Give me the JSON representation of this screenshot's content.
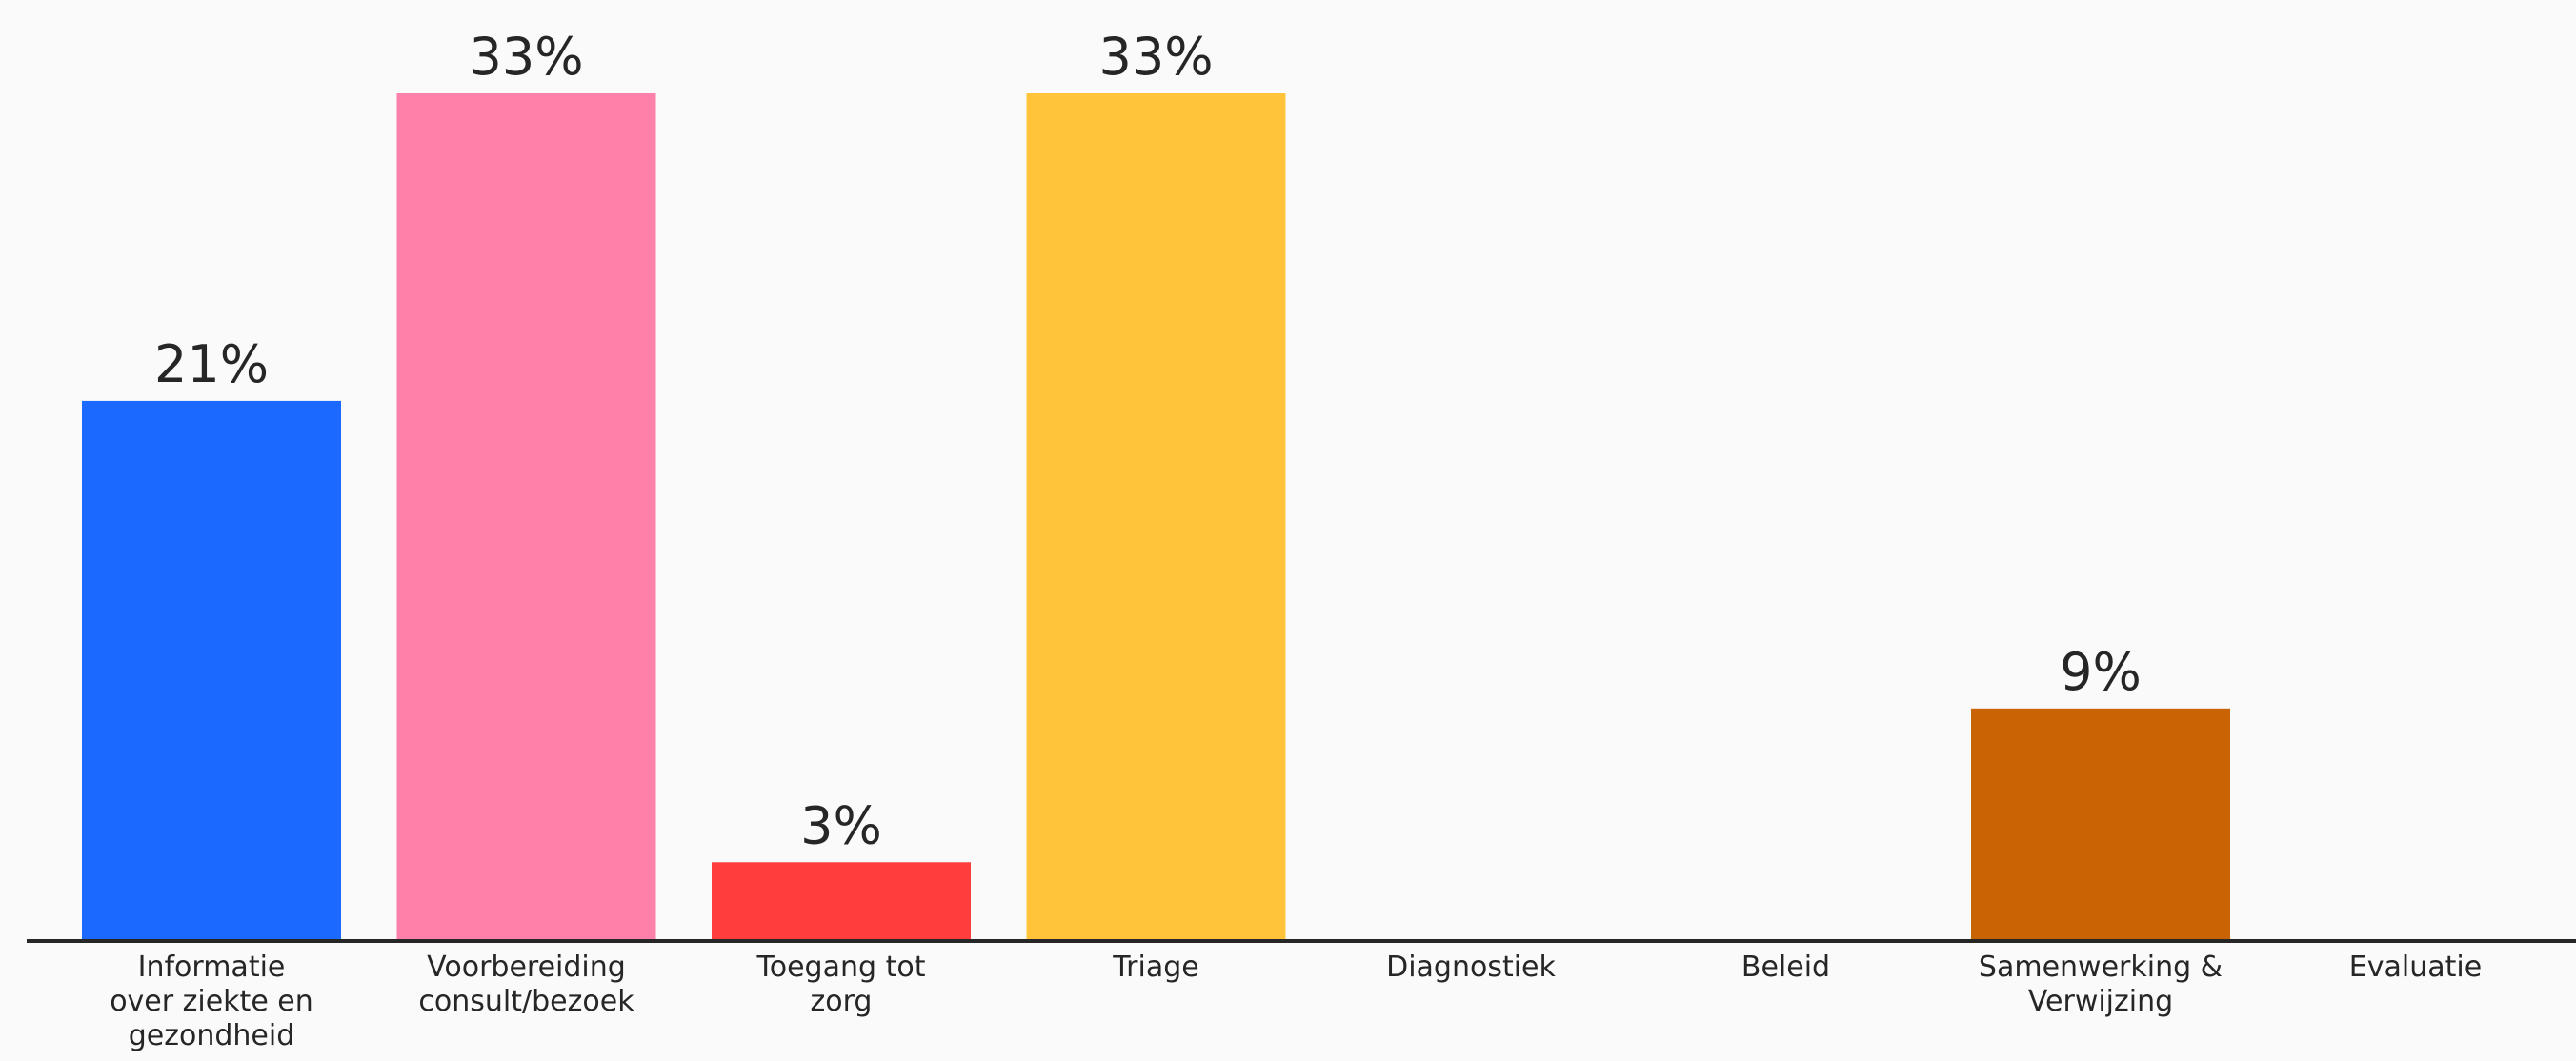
{
  "chart_data": {
    "type": "bar",
    "title": "",
    "xlabel": "",
    "ylabel": "",
    "ylim": [
      0,
      33
    ],
    "grid": false,
    "categories": [
      [
        "Informatie",
        "over ziekte en",
        "gezondheid"
      ],
      [
        "Voorbereiding",
        "consult/bezoek"
      ],
      [
        "Toegang tot",
        "zorg"
      ],
      [
        "Triage"
      ],
      [
        "Diagnostiek"
      ],
      [
        "Beleid"
      ],
      [
        "Samenwerking &",
        "Verwijzing"
      ],
      [
        "Evaluatie"
      ]
    ],
    "values": [
      21,
      33,
      3,
      33,
      0,
      0,
      9,
      0
    ],
    "value_labels": [
      "21%",
      "33%",
      "3%",
      "33%",
      "",
      "",
      "9%",
      ""
    ],
    "colors": [
      "#1c69ff",
      "#ff80a9",
      "#ff3d3d",
      "#ffc43a",
      "#ffffff",
      "#ffffff",
      "#c96405",
      "#ffffff"
    ],
    "axis_color": "#262626"
  }
}
